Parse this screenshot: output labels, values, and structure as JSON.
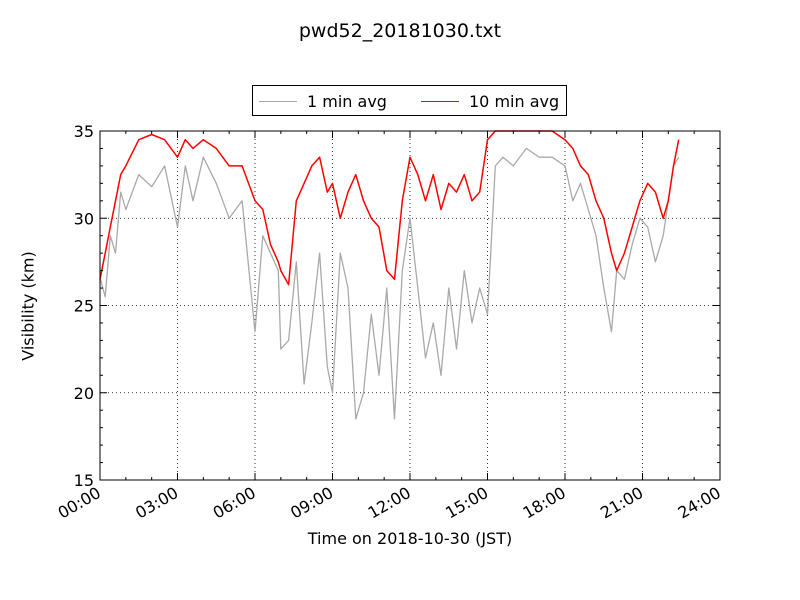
{
  "chart_data": {
    "type": "line",
    "title": "pwd52_20181030.txt",
    "xlabel": "Time on 2018-10-30 (JST)",
    "ylabel": "Visibility (km)",
    "xlim": [
      "00:00",
      "24:00"
    ],
    "ylim": [
      15,
      35
    ],
    "xticks": [
      "00:00",
      "03:00",
      "06:00",
      "09:00",
      "12:00",
      "15:00",
      "18:00",
      "21:00",
      "24:00"
    ],
    "yticks": [
      15,
      20,
      25,
      30,
      35
    ],
    "grid": true,
    "legend_position": "top-center",
    "series": [
      {
        "name": "1 min avg",
        "color": "#a9a9a9",
        "x": [
          0.0,
          0.2,
          0.4,
          0.6,
          0.8,
          1.0,
          1.5,
          2.0,
          2.5,
          3.0,
          3.3,
          3.6,
          4.0,
          4.5,
          5.0,
          5.5,
          6.0,
          6.3,
          6.6,
          6.9,
          7.0,
          7.3,
          7.6,
          7.9,
          8.2,
          8.5,
          8.8,
          9.0,
          9.3,
          9.6,
          9.9,
          10.2,
          10.5,
          10.8,
          11.1,
          11.4,
          11.7,
          12.0,
          12.3,
          12.6,
          12.9,
          13.2,
          13.5,
          13.8,
          14.1,
          14.4,
          14.7,
          15.0,
          15.3,
          15.6,
          16.0,
          16.5,
          17.0,
          17.5,
          18.0,
          18.3,
          18.6,
          18.9,
          19.2,
          19.5,
          19.8,
          20.0,
          20.3,
          20.6,
          20.9,
          21.2,
          21.5,
          21.8,
          22.0,
          22.2,
          22.4
        ],
        "y": [
          26.6,
          25.5,
          29.0,
          28.0,
          31.5,
          30.5,
          32.5,
          31.8,
          33.0,
          29.5,
          33.0,
          31.0,
          33.5,
          32.0,
          30.0,
          31.0,
          23.5,
          29.0,
          28.0,
          27.0,
          22.5,
          23.0,
          27.5,
          20.5,
          24.0,
          28.0,
          21.5,
          20.0,
          28.0,
          26.0,
          18.5,
          20.0,
          24.5,
          21.0,
          26.0,
          18.5,
          27.0,
          30.0,
          26.0,
          22.0,
          24.0,
          21.0,
          26.0,
          22.5,
          27.0,
          24.0,
          26.0,
          24.5,
          33.0,
          33.5,
          33.0,
          34.0,
          33.5,
          33.5,
          33.0,
          31.0,
          32.0,
          30.5,
          29.0,
          26.0,
          23.5,
          27.0,
          26.5,
          28.5,
          30.0,
          29.5,
          27.5,
          29.0,
          31.0,
          33.0,
          33.5
        ]
      },
      {
        "name": "10 min avg",
        "color": "#ff0000",
        "x": [
          0.0,
          0.2,
          0.4,
          0.6,
          0.8,
          1.0,
          1.5,
          2.0,
          2.5,
          3.0,
          3.3,
          3.6,
          4.0,
          4.5,
          5.0,
          5.5,
          6.0,
          6.3,
          6.6,
          6.9,
          7.0,
          7.3,
          7.6,
          7.9,
          8.2,
          8.5,
          8.8,
          9.0,
          9.3,
          9.6,
          9.9,
          10.2,
          10.5,
          10.8,
          11.1,
          11.4,
          11.7,
          12.0,
          12.3,
          12.6,
          12.9,
          13.2,
          13.5,
          13.8,
          14.1,
          14.4,
          14.7,
          15.0,
          15.3,
          15.6,
          16.0,
          16.5,
          17.0,
          17.5,
          18.0,
          18.3,
          18.6,
          18.9,
          19.2,
          19.5,
          19.8,
          20.0,
          20.3,
          20.6,
          20.9,
          21.2,
          21.5,
          21.8,
          22.0,
          22.2,
          22.4
        ],
        "y": [
          26.5,
          28.0,
          29.5,
          31.0,
          32.5,
          33.0,
          34.5,
          34.8,
          34.5,
          33.5,
          34.5,
          34.0,
          34.5,
          34.0,
          33.0,
          33.0,
          31.0,
          30.5,
          28.5,
          27.5,
          27.0,
          26.2,
          31.0,
          32.0,
          33.0,
          33.5,
          31.5,
          32.0,
          30.0,
          31.5,
          32.5,
          31.0,
          30.0,
          29.5,
          27.0,
          26.5,
          31.0,
          33.5,
          32.5,
          31.0,
          32.5,
          30.5,
          32.0,
          31.5,
          32.5,
          31.0,
          31.5,
          34.5,
          35.0,
          35.0,
          35.0,
          35.0,
          35.0,
          35.0,
          34.5,
          34.0,
          33.0,
          32.5,
          31.0,
          30.0,
          28.0,
          27.0,
          28.0,
          29.5,
          31.0,
          32.0,
          31.5,
          30.0,
          31.0,
          33.0,
          34.5
        ]
      }
    ]
  }
}
